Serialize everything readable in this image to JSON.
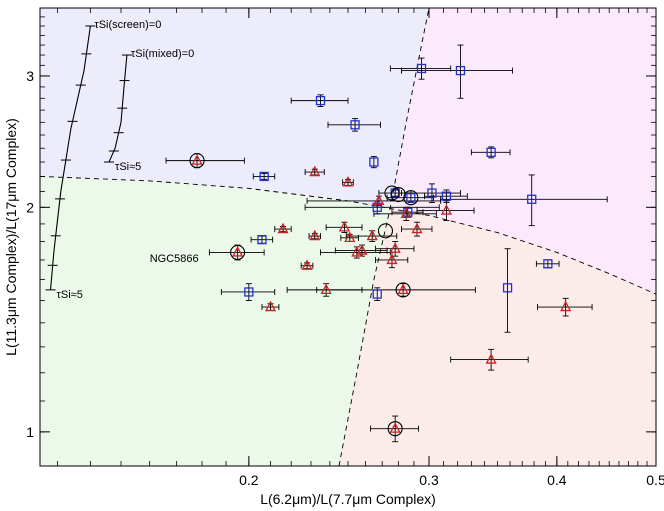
{
  "chart_data": {
    "type": "scatter",
    "xlabel": "L(6.2μm)/L(7.7μm Complex)",
    "ylabel": "L(11.3μm Complex)/L(17μm Complex)",
    "x_scale": "log",
    "y_scale": "log",
    "xlim": [
      0.125,
      0.5
    ],
    "ylim": [
      0.9,
      3.7
    ],
    "x_ticks": [
      {
        "value": 0.2,
        "label": "0.2"
      },
      {
        "value": 0.3,
        "label": "0.3"
      },
      {
        "value": 0.4,
        "label": "0.4"
      },
      {
        "value": 0.5,
        "label": "0.5"
      }
    ],
    "y_ticks": [
      {
        "value": 1,
        "label": "1"
      },
      {
        "value": 2,
        "label": "2"
      },
      {
        "value": 3,
        "label": "3"
      }
    ],
    "regions": [
      {
        "name": "upper-left",
        "color": "#ececfb"
      },
      {
        "name": "upper-right",
        "color": "#fbeafb"
      },
      {
        "name": "lower-left",
        "color": "#ebf8ea"
      },
      {
        "name": "lower-right",
        "color": "#fbecea"
      }
    ],
    "dividing_lines": [
      {
        "points": [
          [
            0.125,
            2.2
          ],
          [
            0.16,
            2.17
          ],
          [
            0.2,
            2.12
          ],
          [
            0.25,
            2.04
          ],
          [
            0.3,
            1.95
          ],
          [
            0.35,
            1.85
          ],
          [
            0.4,
            1.74
          ],
          [
            0.45,
            1.63
          ],
          [
            0.5,
            1.53
          ]
        ]
      },
      {
        "points": [
          [
            0.245,
            0.9
          ],
          [
            0.255,
            1.2
          ],
          [
            0.265,
            1.6
          ],
          [
            0.275,
            2.0
          ],
          [
            0.285,
            2.6
          ],
          [
            0.295,
            3.3
          ],
          [
            0.3,
            3.7
          ]
        ]
      }
    ],
    "extinction_tracks": [
      {
        "label": "τSi(screen)=0",
        "end_label": "τSi≈5",
        "points": [
          [
            0.14,
            3.5
          ],
          [
            0.138,
            3.05
          ],
          [
            0.134,
            2.55
          ],
          [
            0.131,
            2.1
          ],
          [
            0.129,
            1.75
          ],
          [
            0.128,
            1.55
          ]
        ],
        "tick_count": 9
      },
      {
        "label": "τSi(mixed)=0",
        "end_label": "τSi≈5",
        "points": [
          [
            0.152,
            3.2
          ],
          [
            0.151,
            2.9
          ],
          [
            0.15,
            2.6
          ],
          [
            0.148,
            2.4
          ],
          [
            0.146,
            2.3
          ]
        ],
        "tick_count": 6
      }
    ],
    "annotations": [
      {
        "text": "NGC5866",
        "x": 0.16,
        "y": 1.69
      }
    ],
    "series": [
      {
        "marker": "square",
        "color": "#2233cc",
        "points": [
          {
            "x": 0.295,
            "y": 3.07,
            "xerr": [
              0.02,
              0.02
            ],
            "yerr": [
              0.1,
              0.1
            ]
          },
          {
            "x": 0.322,
            "y": 3.05,
            "xerr": [
              0.04,
              0.04
            ],
            "yerr": [
              0.25,
              0.25
            ]
          },
          {
            "x": 0.235,
            "y": 2.78,
            "xerr": [
              0.015,
              0.015
            ],
            "yerr": [
              0.05,
              0.05
            ]
          },
          {
            "x": 0.254,
            "y": 2.58,
            "xerr": [
              0.015,
              0.015
            ],
            "yerr": [
              0.05,
              0.05
            ]
          },
          {
            "x": 0.345,
            "y": 2.37,
            "xerr": [
              0.015,
              0.015
            ],
            "yerr": [
              0.04,
              0.04
            ]
          },
          {
            "x": 0.265,
            "y": 2.3,
            "xerr": [
              0.0,
              0.0
            ],
            "yerr": [
              0.04,
              0.04
            ]
          },
          {
            "x": 0.207,
            "y": 2.2,
            "xerr": [
              0.005,
              0.005
            ],
            "yerr": [
              0.02,
              0.02
            ]
          },
          {
            "x": 0.278,
            "y": 2.09,
            "xerr": [
              0.01,
              0.01
            ],
            "yerr": [
              0.02,
              0.02
            ]
          },
          {
            "x": 0.288,
            "y": 2.06,
            "xerr": [
              0.015,
              0.015
            ],
            "yerr": [
              0.03,
              0.03
            ]
          },
          {
            "x": 0.302,
            "y": 2.09,
            "xerr": [
              0.02,
              0.02
            ],
            "yerr": [
              0.06,
              0.06
            ]
          },
          {
            "x": 0.312,
            "y": 2.07,
            "xerr": [
              0.015,
              0.015
            ],
            "yerr": [
              0.04,
              0.04
            ]
          },
          {
            "x": 0.378,
            "y": 2.05,
            "xerr": [
              0.07,
              0.07
            ],
            "yerr": [
              0.16,
              0.16
            ]
          },
          {
            "x": 0.267,
            "y": 2.0,
            "xerr": [
              0.04,
              0.04
            ],
            "yerr": [
              0.04,
              0.04
            ]
          },
          {
            "x": 0.286,
            "y": 1.97,
            "xerr": [
              0.01,
              0.01
            ],
            "yerr": [
              0.03,
              0.03
            ]
          },
          {
            "x": 0.206,
            "y": 1.81,
            "xerr": [
              0.005,
              0.005
            ],
            "yerr": [
              0.02,
              0.02
            ]
          },
          {
            "x": 0.392,
            "y": 1.68,
            "xerr": [
              0.01,
              0.01
            ],
            "yerr": [
              0.02,
              0.02
            ]
          },
          {
            "x": 0.358,
            "y": 1.56,
            "xerr": [
              0.0,
              0.0
            ],
            "yerr": [
              0.2,
              0.2
            ]
          },
          {
            "x": 0.2,
            "y": 1.54,
            "xerr": [
              0.012,
              0.012
            ],
            "yerr": [
              0.04,
              0.04
            ]
          },
          {
            "x": 0.267,
            "y": 1.53,
            "xerr": [
              0.0,
              0.0
            ],
            "yerr": [
              0.03,
              0.03
            ]
          }
        ]
      },
      {
        "marker": "triangle",
        "color": "#cc2222",
        "points": [
          {
            "x": 0.178,
            "y": 2.31,
            "xerr": [
              0.012,
              0.02
            ],
            "yerr": [
              0.05,
              0.05
            ]
          },
          {
            "x": 0.232,
            "y": 2.23,
            "xerr": [
              0.005,
              0.005
            ],
            "yerr": [
              0.02,
              0.02
            ]
          },
          {
            "x": 0.25,
            "y": 2.16,
            "xerr": [
              0.003,
              0.003
            ],
            "yerr": [
              0.02,
              0.02
            ]
          },
          {
            "x": 0.268,
            "y": 2.04,
            "xerr": [
              0.04,
              0.04
            ],
            "yerr": [
              0.03,
              0.03
            ]
          },
          {
            "x": 0.292,
            "y": 1.87,
            "xerr": [
              0.01,
              0.01
            ],
            "yerr": [
              0.04,
              0.04
            ]
          },
          {
            "x": 0.285,
            "y": 1.96,
            "xerr": [
              0.02,
              0.02
            ],
            "yerr": [
              0.04,
              0.04
            ]
          },
          {
            "x": 0.312,
            "y": 1.98,
            "xerr": [
              0.02,
              0.02
            ],
            "yerr": [
              0.06,
              0.06
            ]
          },
          {
            "x": 0.216,
            "y": 1.87,
            "xerr": [
              0.004,
              0.004
            ],
            "yerr": [
              0.015,
              0.015
            ]
          },
          {
            "x": 0.232,
            "y": 1.83,
            "xerr": [
              0.003,
              0.003
            ],
            "yerr": [
              0.015,
              0.015
            ]
          },
          {
            "x": 0.248,
            "y": 1.88,
            "xerr": [
              0.01,
              0.01
            ],
            "yerr": [
              0.03,
              0.03
            ]
          },
          {
            "x": 0.251,
            "y": 1.82,
            "xerr": [
              0.005,
              0.005
            ],
            "yerr": [
              0.02,
              0.02
            ]
          },
          {
            "x": 0.264,
            "y": 1.83,
            "xerr": [
              0.015,
              0.015
            ],
            "yerr": [
              0.03,
              0.03
            ]
          },
          {
            "x": 0.258,
            "y": 1.75,
            "xerr": [
              0.015,
              0.015
            ],
            "yerr": [
              0.03,
              0.03
            ]
          },
          {
            "x": 0.255,
            "y": 1.74,
            "xerr": [
              0.02,
              0.02
            ],
            "yerr": [
              0.03,
              0.03
            ]
          },
          {
            "x": 0.278,
            "y": 1.76,
            "xerr": [
              0.012,
              0.012
            ],
            "yerr": [
              0.04,
              0.04
            ]
          },
          {
            "x": 0.276,
            "y": 1.7,
            "xerr": [
              0.01,
              0.01
            ],
            "yerr": [
              0.04,
              0.04
            ]
          },
          {
            "x": 0.195,
            "y": 1.74,
            "xerr": [
              0.012,
              0.012
            ],
            "yerr": [
              0.04,
              0.04
            ]
          },
          {
            "x": 0.228,
            "y": 1.67,
            "xerr": [
              0.003,
              0.003
            ],
            "yerr": [
              0.015,
              0.015
            ]
          },
          {
            "x": 0.238,
            "y": 1.55,
            "xerr": [
              0.02,
              0.02
            ],
            "yerr": [
              0.03,
              0.03
            ]
          },
          {
            "x": 0.283,
            "y": 1.55,
            "xerr": [
              0.05,
              0.05
            ],
            "yerr": [
              0.03,
              0.03
            ]
          },
          {
            "x": 0.21,
            "y": 1.47,
            "xerr": [
              0.004,
              0.004
            ],
            "yerr": [
              0.015,
              0.015
            ]
          },
          {
            "x": 0.408,
            "y": 1.47,
            "xerr": [
              0.025,
              0.025
            ],
            "yerr": [
              0.04,
              0.04
            ]
          },
          {
            "x": 0.345,
            "y": 1.25,
            "xerr": [
              0.03,
              0.03
            ],
            "yerr": [
              0.04,
              0.04
            ]
          },
          {
            "x": 0.278,
            "y": 1.01,
            "xerr": [
              0.015,
              0.015
            ],
            "yerr": [
              0.04,
              0.04
            ]
          }
        ]
      }
    ],
    "circled_points": [
      {
        "x": 0.178,
        "y": 2.31
      },
      {
        "x": 0.276,
        "y": 2.09
      },
      {
        "x": 0.28,
        "y": 2.08
      },
      {
        "x": 0.288,
        "y": 2.06
      },
      {
        "x": 0.272,
        "y": 1.86
      },
      {
        "x": 0.195,
        "y": 1.74
      },
      {
        "x": 0.283,
        "y": 1.55
      },
      {
        "x": 0.278,
        "y": 1.01
      }
    ]
  }
}
